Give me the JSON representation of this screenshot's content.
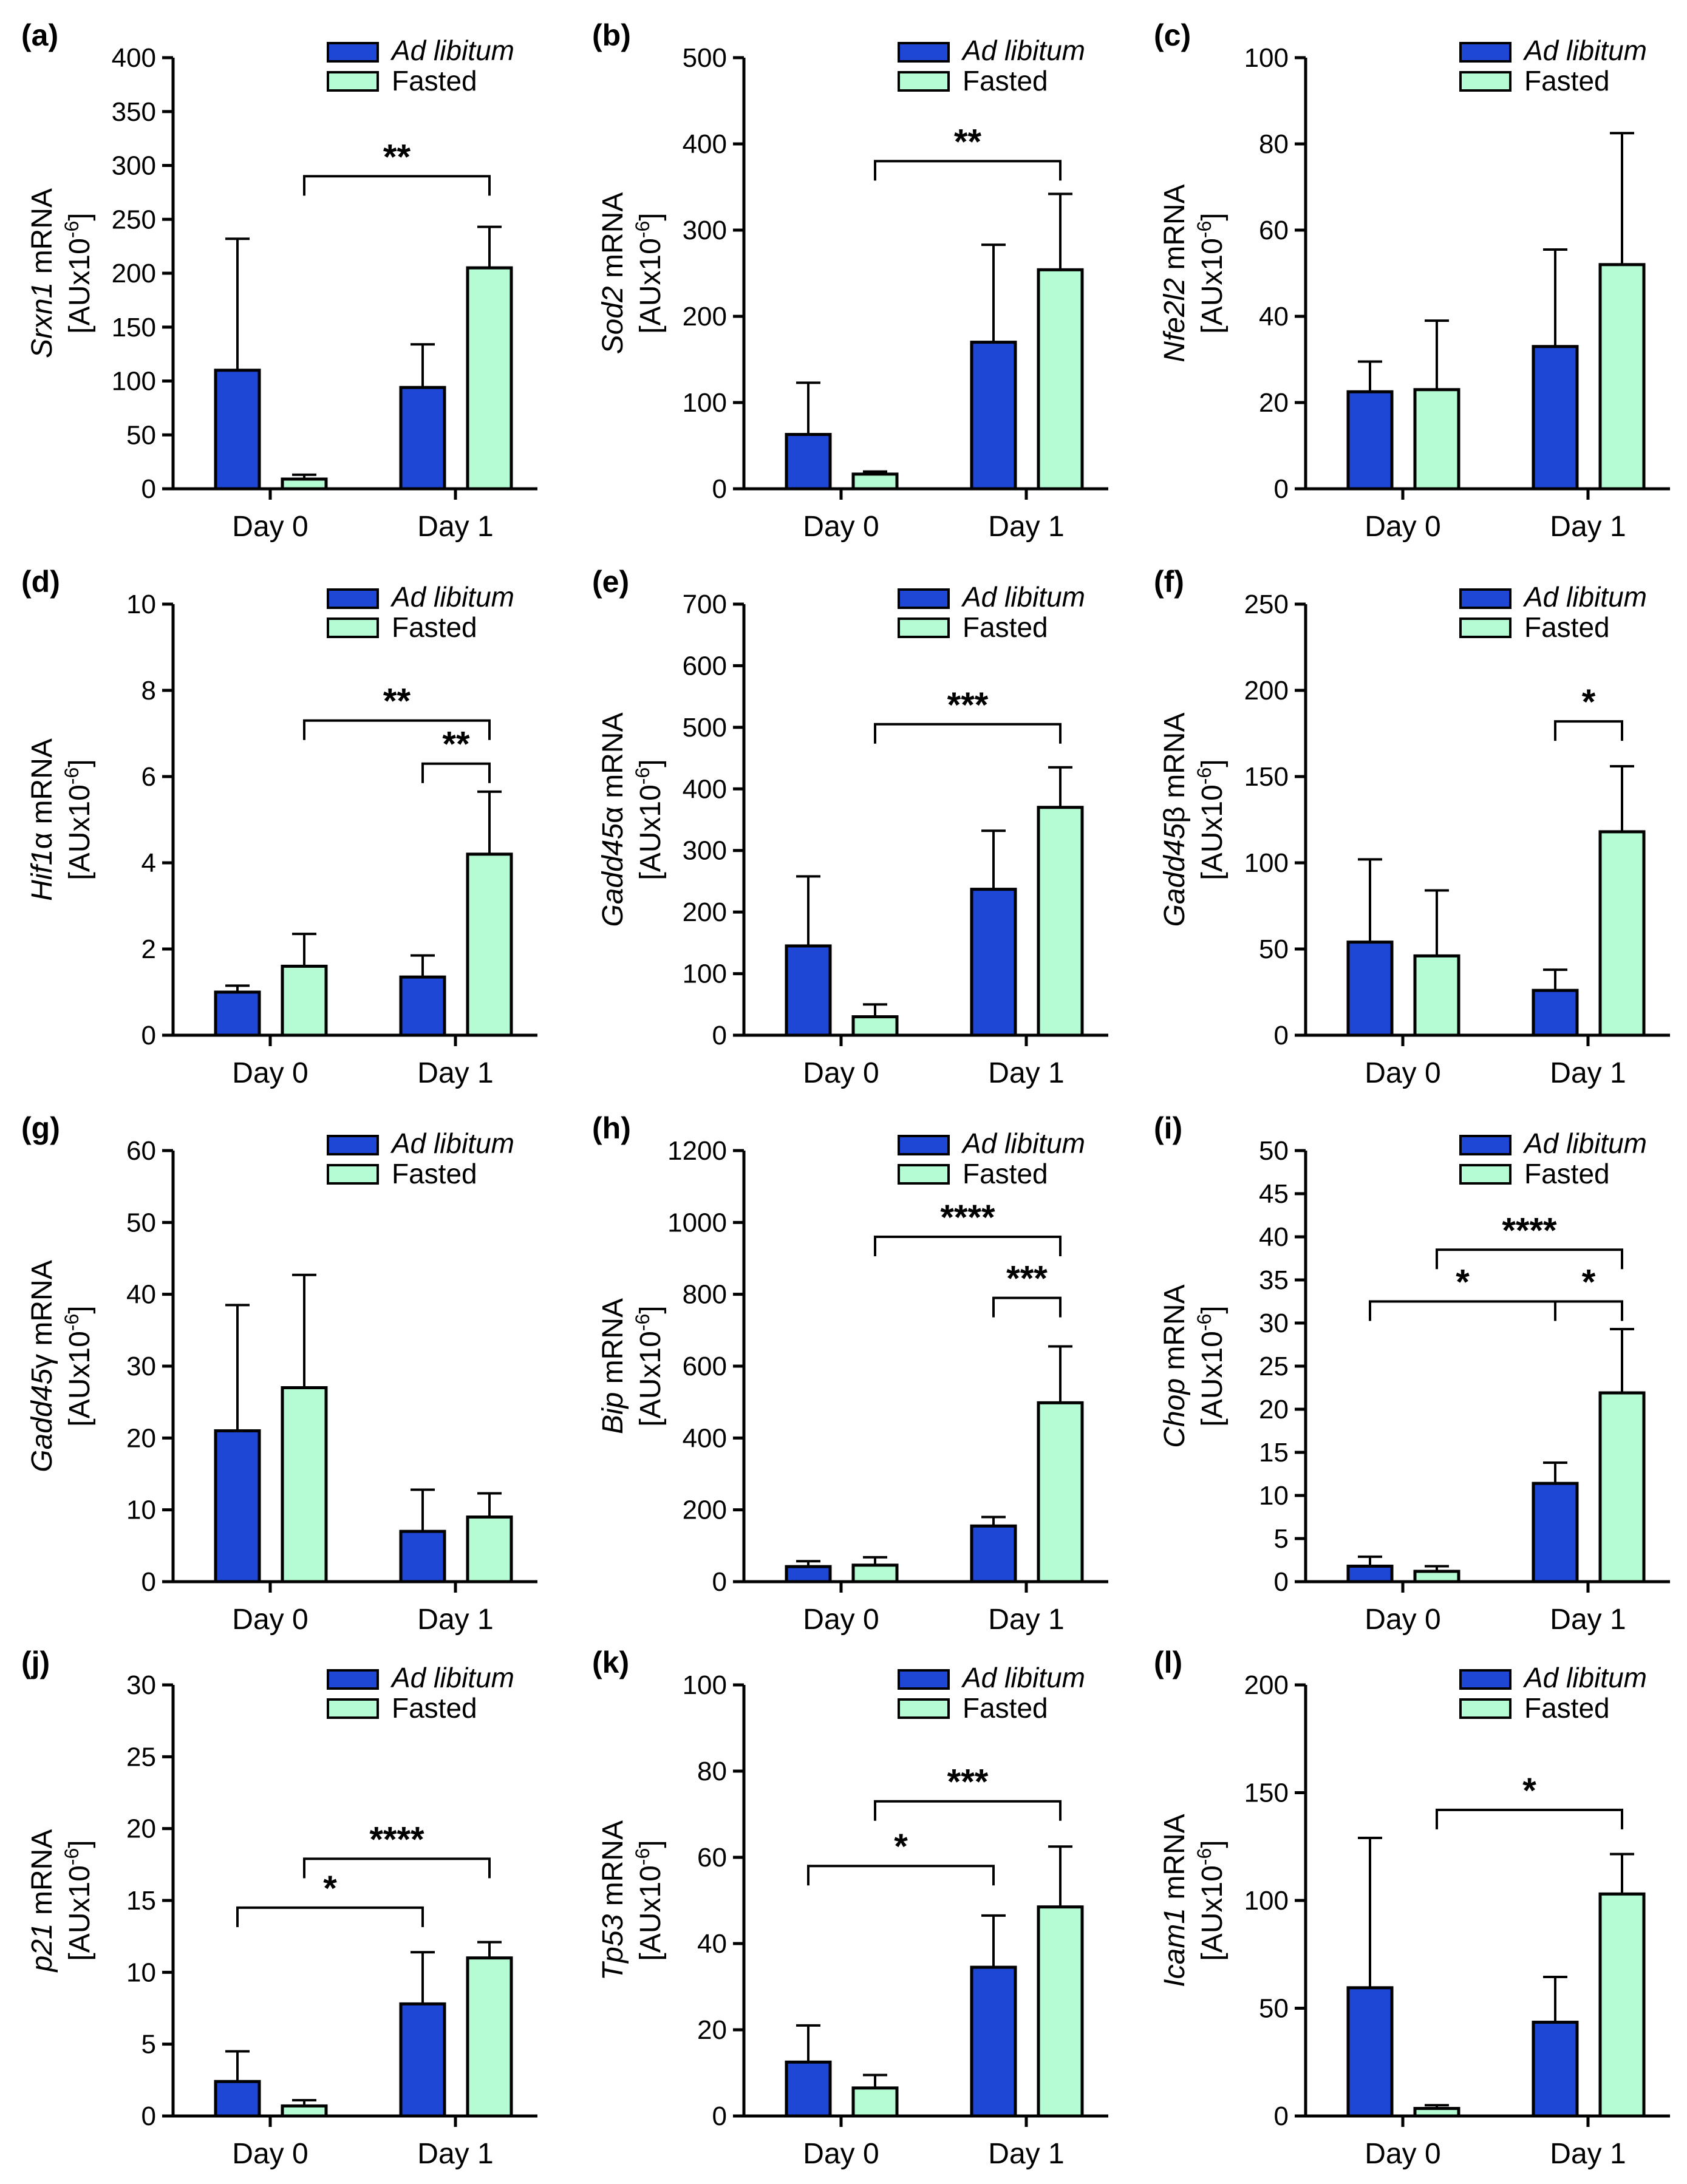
{
  "colors": {
    "ad_libitum": "#1f47d6",
    "fasted": "#b5fbd3",
    "stroke": "#000000"
  },
  "legend": {
    "ad_libitum": "Ad libitum",
    "fasted": "Fasted"
  },
  "chart_data": [
    {
      "panel": "(a)",
      "type": "bar",
      "gene": "Srxn1",
      "ylabel_suffix": " mRNA",
      "unit_base": "[AUx10",
      "unit_exp": "-6",
      "unit_close": "]",
      "categories": [
        "Day 0",
        "Day 1"
      ],
      "ylim": [
        0,
        400
      ],
      "yticks": [
        0,
        50,
        100,
        150,
        200,
        250,
        300,
        350,
        400
      ],
      "series": [
        {
          "name": "Ad libitum",
          "values": [
            110,
            94
          ],
          "errors": [
            122,
            40
          ]
        },
        {
          "name": "Fasted",
          "values": [
            9,
            205
          ],
          "errors": [
            4,
            38
          ]
        }
      ],
      "significance": [
        {
          "label": "**",
          "from": [
            0,
            1
          ],
          "to": [
            1,
            1
          ],
          "y": 290
        }
      ]
    },
    {
      "panel": "(b)",
      "type": "bar",
      "gene": "Sod2",
      "ylabel_suffix": " mRNA",
      "unit_base": "[AUx10",
      "unit_exp": "-6",
      "unit_close": "]",
      "categories": [
        "Day 0",
        "Day 1"
      ],
      "ylim": [
        0,
        500
      ],
      "yticks": [
        0,
        100,
        200,
        300,
        400,
        500
      ],
      "series": [
        {
          "name": "Ad libitum",
          "values": [
            63,
            170
          ],
          "errors": [
            60,
            113
          ]
        },
        {
          "name": "Fasted",
          "values": [
            17,
            254
          ],
          "errors": [
            3,
            88
          ]
        }
      ],
      "significance": [
        {
          "label": "**",
          "from": [
            0,
            1
          ],
          "to": [
            1,
            1
          ],
          "y": 380
        }
      ]
    },
    {
      "panel": "(c)",
      "type": "bar",
      "gene": "Nfe2l2",
      "ylabel_suffix": " mRNA",
      "unit_base": "[AUx10",
      "unit_exp": "-6",
      "unit_close": "]",
      "categories": [
        "Day 0",
        "Day 1"
      ],
      "ylim": [
        0,
        100
      ],
      "yticks": [
        0,
        20,
        40,
        60,
        80,
        100
      ],
      "series": [
        {
          "name": "Ad libitum",
          "values": [
            22.5,
            33
          ],
          "errors": [
            7,
            22.5
          ]
        },
        {
          "name": "Fasted",
          "values": [
            23,
            52
          ],
          "errors": [
            16,
            30.5
          ]
        }
      ],
      "significance": []
    },
    {
      "panel": "(d)",
      "type": "bar",
      "gene": "Hif1",
      "gene_greek": "α",
      "ylabel_suffix": " mRNA",
      "unit_base": "[AUx10",
      "unit_exp": "-6",
      "unit_close": "]",
      "categories": [
        "Day 0",
        "Day 1"
      ],
      "ylim": [
        0,
        10
      ],
      "yticks": [
        0,
        2,
        4,
        6,
        8,
        10
      ],
      "series": [
        {
          "name": "Ad libitum",
          "values": [
            1.0,
            1.35
          ],
          "errors": [
            0.15,
            0.5
          ]
        },
        {
          "name": "Fasted",
          "values": [
            1.6,
            4.2
          ],
          "errors": [
            0.75,
            1.45
          ]
        }
      ],
      "significance": [
        {
          "label": "**",
          "from": [
            0,
            1
          ],
          "to": [
            1,
            1
          ],
          "y": 7.3
        },
        {
          "label": "**",
          "from": [
            1,
            0
          ],
          "to": [
            1,
            1
          ],
          "y": 6.3
        }
      ]
    },
    {
      "panel": "(e)",
      "type": "bar",
      "gene": "Gadd45",
      "gene_greek": "α",
      "ylabel_suffix": " mRNA",
      "unit_base": "[AUx10",
      "unit_exp": "-6",
      "unit_close": "]",
      "categories": [
        "Day 0",
        "Day 1"
      ],
      "ylim": [
        0,
        700
      ],
      "yticks": [
        0,
        100,
        200,
        300,
        400,
        500,
        600,
        700
      ],
      "series": [
        {
          "name": "Ad libitum",
          "values": [
            145,
            237
          ],
          "errors": [
            113,
            95
          ]
        },
        {
          "name": "Fasted",
          "values": [
            30,
            370
          ],
          "errors": [
            20,
            65
          ]
        }
      ],
      "significance": [
        {
          "label": "***",
          "from": [
            0,
            1
          ],
          "to": [
            1,
            1
          ],
          "y": 505
        }
      ]
    },
    {
      "panel": "(f)",
      "type": "bar",
      "gene": "Gadd45",
      "gene_greek": "β",
      "ylabel_suffix": " mRNA",
      "unit_base": "[AUx10",
      "unit_exp": "-6",
      "unit_close": "]",
      "categories": [
        "Day 0",
        "Day 1"
      ],
      "ylim": [
        0,
        250
      ],
      "yticks": [
        0,
        50,
        100,
        150,
        200,
        250
      ],
      "series": [
        {
          "name": "Ad libitum",
          "values": [
            54,
            26
          ],
          "errors": [
            48,
            12
          ]
        },
        {
          "name": "Fasted",
          "values": [
            46,
            118
          ],
          "errors": [
            38,
            38
          ]
        }
      ],
      "significance": [
        {
          "label": "*",
          "from": [
            1,
            0
          ],
          "to": [
            1,
            1
          ],
          "y": 182
        }
      ]
    },
    {
      "panel": "(g)",
      "type": "bar",
      "gene": "Gadd45",
      "gene_greek": "γ",
      "ylabel_suffix": " mRNA",
      "unit_base": "[AUx10",
      "unit_exp": "-6",
      "unit_close": "]",
      "categories": [
        "Day 0",
        "Day 1"
      ],
      "ylim": [
        0,
        60
      ],
      "yticks": [
        0,
        10,
        20,
        30,
        40,
        50,
        60
      ],
      "series": [
        {
          "name": "Ad libitum",
          "values": [
            21,
            7
          ],
          "errors": [
            17.5,
            5.8
          ]
        },
        {
          "name": "Fasted",
          "values": [
            27,
            9
          ],
          "errors": [
            15.7,
            3.3
          ]
        }
      ],
      "significance": []
    },
    {
      "panel": "(h)",
      "type": "bar",
      "gene": "Bip",
      "ylabel_suffix": " mRNA",
      "unit_base": "[AUx10",
      "unit_exp": "-6",
      "unit_close": "]",
      "categories": [
        "Day 0",
        "Day 1"
      ],
      "ylim": [
        0,
        1200
      ],
      "yticks": [
        0,
        200,
        400,
        600,
        800,
        1000,
        1200
      ],
      "series": [
        {
          "name": "Ad libitum",
          "values": [
            42,
            155
          ],
          "errors": [
            15,
            25
          ]
        },
        {
          "name": "Fasted",
          "values": [
            46,
            498
          ],
          "errors": [
            22,
            157
          ]
        }
      ],
      "significance": [
        {
          "label": "****",
          "from": [
            0,
            1
          ],
          "to": [
            1,
            1
          ],
          "y": 960
        },
        {
          "label": "***",
          "from": [
            1,
            0
          ],
          "to": [
            1,
            1
          ],
          "y": 790
        }
      ]
    },
    {
      "panel": "(i)",
      "type": "bar",
      "gene": "Chop",
      "ylabel_suffix": " mRNA",
      "unit_base": "[AUx10",
      "unit_exp": "-6",
      "unit_close": "]",
      "categories": [
        "Day 0",
        "Day 1"
      ],
      "ylim": [
        0,
        50
      ],
      "yticks": [
        0,
        5,
        10,
        15,
        20,
        25,
        30,
        35,
        40,
        45,
        50
      ],
      "series": [
        {
          "name": "Ad libitum",
          "values": [
            1.8,
            11.4
          ],
          "errors": [
            1.1,
            2.4
          ]
        },
        {
          "name": "Fasted",
          "values": [
            1.2,
            21.9
          ],
          "errors": [
            0.6,
            7.4
          ]
        }
      ],
      "significance": [
        {
          "label": "****",
          "from": [
            0,
            1
          ],
          "to": [
            1,
            1
          ],
          "y": 38.5
        },
        {
          "label": "*",
          "from": [
            0,
            0
          ],
          "to": [
            1,
            0
          ],
          "y": 32.5
        },
        {
          "label": "*",
          "from": [
            1,
            0
          ],
          "to": [
            1,
            1
          ],
          "y": 32.5
        }
      ]
    },
    {
      "panel": "(j)",
      "type": "bar",
      "gene": "p21",
      "ylabel_suffix": " mRNA",
      "unit_base": "[AUx10",
      "unit_exp": "-6",
      "unit_close": "]",
      "categories": [
        "Day 0",
        "Day 1"
      ],
      "ylim": [
        0,
        30
      ],
      "yticks": [
        0,
        5,
        10,
        15,
        20,
        25,
        30
      ],
      "series": [
        {
          "name": "Ad libitum",
          "values": [
            2.4,
            7.8
          ],
          "errors": [
            2.1,
            3.6
          ]
        },
        {
          "name": "Fasted",
          "values": [
            0.7,
            11.0
          ],
          "errors": [
            0.4,
            1.1
          ]
        }
      ],
      "significance": [
        {
          "label": "****",
          "from": [
            0,
            1
          ],
          "to": [
            1,
            1
          ],
          "y": 17.9
        },
        {
          "label": "*",
          "from": [
            0,
            0
          ],
          "to": [
            1,
            0
          ],
          "y": 14.5
        }
      ]
    },
    {
      "panel": "(k)",
      "type": "bar",
      "gene": "Tp53",
      "ylabel_suffix": " mRNA",
      "unit_base": "[AUx10",
      "unit_exp": "-6",
      "unit_close": "]",
      "categories": [
        "Day 0",
        "Day 1"
      ],
      "ylim": [
        0,
        100
      ],
      "yticks": [
        0,
        20,
        40,
        60,
        80,
        100
      ],
      "series": [
        {
          "name": "Ad libitum",
          "values": [
            12.5,
            34.5
          ],
          "errors": [
            8.5,
            12
          ]
        },
        {
          "name": "Fasted",
          "values": [
            6.5,
            48.5
          ],
          "errors": [
            3,
            14
          ]
        }
      ],
      "significance": [
        {
          "label": "***",
          "from": [
            0,
            1
          ],
          "to": [
            1,
            1
          ],
          "y": 73
        },
        {
          "label": "*",
          "from": [
            0,
            0
          ],
          "to": [
            1,
            0
          ],
          "y": 58
        }
      ]
    },
    {
      "panel": "(l)",
      "type": "bar",
      "gene": "Icam1",
      "ylabel_suffix": " mRNA",
      "unit_base": "[AUx10",
      "unit_exp": "-6",
      "unit_close": "]",
      "categories": [
        "Day 0",
        "Day 1"
      ],
      "ylim": [
        0,
        200
      ],
      "yticks": [
        0,
        50,
        100,
        150,
        200
      ],
      "series": [
        {
          "name": "Ad libitum",
          "values": [
            59.5,
            43.5
          ],
          "errors": [
            69.5,
            21
          ]
        },
        {
          "name": "Fasted",
          "values": [
            3.5,
            103
          ],
          "errors": [
            1.5,
            18.5
          ]
        }
      ],
      "significance": [
        {
          "label": "*",
          "from": [
            0,
            1
          ],
          "to": [
            1,
            1
          ],
          "y": 142
        }
      ]
    }
  ]
}
